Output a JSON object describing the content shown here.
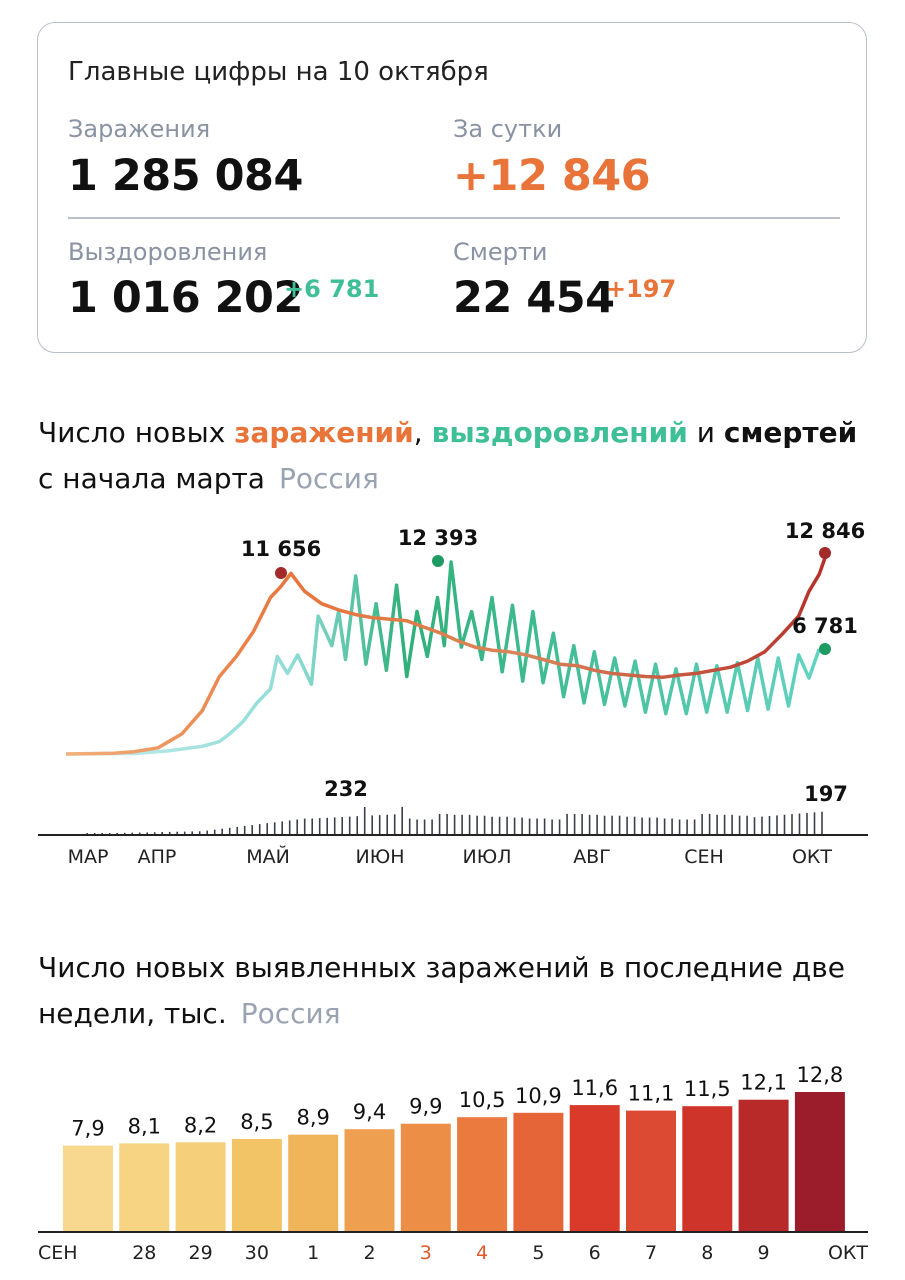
{
  "summary": {
    "title": "Главные цифры на 10 октября",
    "infections_label": "Заражения",
    "infections_value": "1 285 084",
    "daily_label": "За сутки",
    "daily_value": "+12 846",
    "recoveries_label": "Выздоровления",
    "recoveries_value": "1 016 202",
    "recoveries_delta": "+6 781",
    "deaths_label": "Смерти",
    "deaths_value": "22 454",
    "deaths_delta": "+197"
  },
  "colors": {
    "orange": "#e8743a",
    "green": "#3fbf95",
    "dark_red": "#a32a2a",
    "dark_green": "#1f9a63",
    "bars_dark": "#3b3f4a",
    "gray": "#9aa3b1"
  },
  "chart1_heading": {
    "p1": "Число новых ",
    "infections": "заражений",
    "comma": ", ",
    "recoveries": "выздоровлений",
    "and": " и ",
    "deaths": "смертей",
    "line2": "с начала марта",
    "region": "Россия"
  },
  "chart2_heading": {
    "line1": "Число новых выявленных заражений в последние две",
    "line2": "недели, тыс.",
    "region": "Россия"
  },
  "chart_data": [
    {
      "type": "line",
      "x_tick_labels": [
        "МАР",
        "АПР",
        "МАЙ",
        "ИЮН",
        "ИЮЛ",
        "АВГ",
        "СЕН",
        "ОКТ"
      ],
      "series": [
        {
          "name": "заражений",
          "points": [
            [
              0,
              0
            ],
            [
              14,
              50
            ],
            [
              20,
              150
            ],
            [
              27,
              400
            ],
            [
              34,
              1300
            ],
            [
              40,
              2800
            ],
            [
              45,
              5000
            ],
            [
              50,
              6300
            ],
            [
              55,
              7900
            ],
            [
              60,
              10100
            ],
            [
              63,
              10800
            ],
            [
              66,
              11656
            ],
            [
              70,
              10500
            ],
            [
              75,
              9700
            ],
            [
              80,
              9300
            ],
            [
              85,
              9000
            ],
            [
              90,
              8800
            ],
            [
              95,
              8700
            ],
            [
              100,
              8600
            ],
            [
              105,
              8200
            ],
            [
              110,
              7800
            ],
            [
              115,
              7300
            ],
            [
              120,
              6900
            ],
            [
              125,
              6700
            ],
            [
              130,
              6600
            ],
            [
              135,
              6400
            ],
            [
              140,
              6100
            ],
            [
              145,
              5800
            ],
            [
              150,
              5700
            ],
            [
              155,
              5400
            ],
            [
              160,
              5200
            ],
            [
              165,
              5100
            ],
            [
              170,
              5000
            ],
            [
              175,
              4950
            ],
            [
              180,
              5100
            ],
            [
              185,
              5200
            ],
            [
              190,
              5400
            ],
            [
              195,
              5600
            ],
            [
              200,
              6000
            ],
            [
              205,
              6600
            ],
            [
              210,
              7700
            ],
            [
              215,
              8900
            ],
            [
              218,
              10500
            ],
            [
              221,
              11600
            ],
            [
              223,
              12846
            ]
          ]
        },
        {
          "name": "выздоровлений",
          "points": [
            [
              0,
              0
            ],
            [
              20,
              30
            ],
            [
              30,
              200
            ],
            [
              40,
              500
            ],
            [
              45,
              800
            ],
            [
              48,
              1300
            ],
            [
              52,
              2100
            ],
            [
              56,
              3300
            ],
            [
              60,
              4200
            ],
            [
              62,
              6300
            ],
            [
              65,
              5200
            ],
            [
              68,
              6400
            ],
            [
              72,
              4500
            ],
            [
              74,
              8900
            ],
            [
              78,
              7000
            ],
            [
              80,
              9200
            ],
            [
              82,
              6100
            ],
            [
              85,
              11500
            ],
            [
              88,
              5800
            ],
            [
              91,
              9700
            ],
            [
              94,
              5400
            ],
            [
              97,
              10900
            ],
            [
              100,
              5000
            ],
            [
              103,
              9200
            ],
            [
              106,
              6300
            ],
            [
              109,
              10100
            ],
            [
              111,
              7000
            ],
            [
              113,
              12393
            ],
            [
              116,
              6900
            ],
            [
              119,
              9200
            ],
            [
              122,
              6100
            ],
            [
              125,
              10100
            ],
            [
              128,
              5300
            ],
            [
              131,
              9600
            ],
            [
              134,
              4700
            ],
            [
              137,
              9200
            ],
            [
              140,
              4600
            ],
            [
              143,
              7800
            ],
            [
              146,
              3700
            ],
            [
              149,
              7000
            ],
            [
              152,
              3300
            ],
            [
              155,
              6600
            ],
            [
              158,
              3200
            ],
            [
              161,
              6200
            ],
            [
              164,
              3100
            ],
            [
              167,
              6000
            ],
            [
              170,
              2700
            ],
            [
              173,
              5800
            ],
            [
              176,
              2600
            ],
            [
              179,
              5500
            ],
            [
              182,
              2600
            ],
            [
              185,
              5800
            ],
            [
              188,
              2700
            ],
            [
              191,
              5700
            ],
            [
              194,
              2700
            ],
            [
              197,
              5900
            ],
            [
              200,
              2800
            ],
            [
              203,
              6200
            ],
            [
              206,
              2900
            ],
            [
              209,
              6200
            ],
            [
              212,
              3100
            ],
            [
              215,
              6400
            ],
            [
              218,
              4900
            ],
            [
              221,
              6781
            ]
          ]
        },
        {
          "name": "смертей",
          "values_note": "",
          "peak_label_value": 232,
          "last_value": 197
        }
      ],
      "annotations": [
        {
          "label": "11 656",
          "series": "заражений",
          "value": 11656
        },
        {
          "label": "12 393",
          "series": "выздоровлений",
          "value": 12393
        },
        {
          "label": "12 846",
          "series": "заражений",
          "value": 12846
        },
        {
          "label": "6 781",
          "series": "выздоровлений",
          "value": 6781
        },
        {
          "label": "232",
          "series": "смертей",
          "value": 232
        },
        {
          "label": "197",
          "series": "смертей",
          "value": 197
        }
      ],
      "ylim": [
        0,
        13000
      ]
    },
    {
      "type": "bar",
      "categories": [
        "",
        "28",
        "29",
        "30",
        "1",
        "2",
        "3",
        "4",
        "5",
        "6",
        "7",
        "8",
        "9",
        ""
      ],
      "category_colors": [
        "#222",
        "#222",
        "#222",
        "#222",
        "#222",
        "#222",
        "#e05a2a",
        "#e05a2a",
        "#222",
        "#222",
        "#222",
        "#222",
        "#222",
        "#222"
      ],
      "month_labels": [
        "СЕН",
        "ОКТ"
      ],
      "values": [
        7.9,
        8.1,
        8.2,
        8.5,
        8.9,
        9.4,
        9.9,
        10.5,
        10.9,
        11.6,
        11.1,
        11.5,
        12.1,
        12.8
      ],
      "value_labels": [
        "7,9",
        "8,1",
        "8,2",
        "8,5",
        "8,9",
        "9,4",
        "9,9",
        "10,5",
        "10,9",
        "11,6",
        "11,1",
        "11,5",
        "12,1",
        "12,8"
      ],
      "bar_colors": [
        "#f7d88e",
        "#f6d483",
        "#f5cf7a",
        "#f3c466",
        "#f0b45a",
        "#eea050",
        "#ed8e46",
        "#ea7a3e",
        "#e66538",
        "#d93a2a",
        "#dc4a34",
        "#cf342a",
        "#b82a2a",
        "#9b1c2a"
      ]
    }
  ]
}
